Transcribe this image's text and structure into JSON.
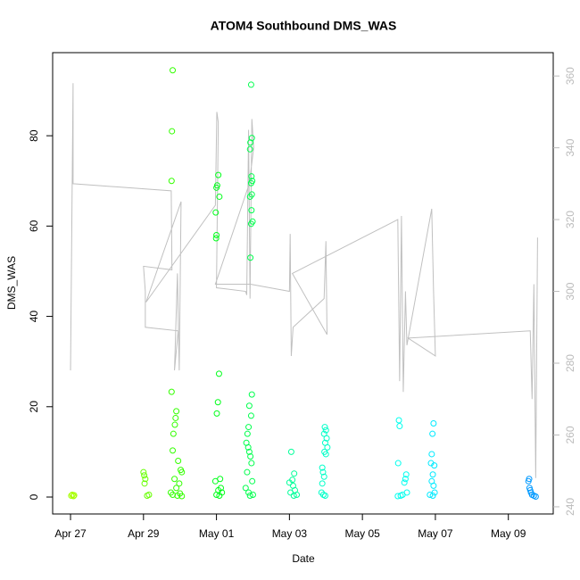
{
  "chart_data": {
    "type": "scatter",
    "title": "ATOM4 Southbound DMS_WAS",
    "x_label": "Date",
    "y_label": "DMS_WAS",
    "xlim": [
      -0.49,
      13.23
    ],
    "ylim": [
      -3.75,
      98.4
    ],
    "y2lim": [
      238.0,
      366.5
    ],
    "xticks": [
      {
        "value": 0,
        "label": "Apr 27"
      },
      {
        "value": 2,
        "label": "Apr 29"
      },
      {
        "value": 4,
        "label": "May 01"
      },
      {
        "value": 6,
        "label": "May 03"
      },
      {
        "value": 8,
        "label": "May 05"
      },
      {
        "value": 10,
        "label": "May 07"
      },
      {
        "value": 12,
        "label": "May 09"
      }
    ],
    "yticks": [
      0,
      20,
      40,
      60,
      80
    ],
    "y2ticks": [
      240,
      260,
      280,
      300,
      320,
      340,
      360
    ],
    "series": [
      {
        "color": "#a6ff00",
        "x": [
          0.02,
          0.05,
          0.08,
          0.1
        ],
        "values": [
          0.3,
          0.5,
          0.2,
          0.4
        ]
      },
      {
        "color": "#66ff00",
        "x": [
          2.0,
          2.02,
          2.05,
          2.03,
          2.1,
          2.15
        ],
        "values": [
          5.5,
          4.8,
          4,
          3,
          0.3,
          0.5
        ]
      },
      {
        "color": "#33ff00",
        "x": [
          2.8,
          2.78,
          2.77,
          2.77,
          2.9,
          2.88,
          2.86,
          2.82,
          2.8,
          2.95,
          3.02,
          3.05,
          2.85,
          2.98,
          2.9,
          2.75,
          3.0,
          2.8,
          2.93,
          3.05
        ],
        "values": [
          94.5,
          81,
          70,
          23.3,
          19,
          17.5,
          16,
          14,
          10.3,
          8,
          6,
          5.5,
          4,
          3,
          2,
          1,
          0.8,
          0.5,
          0.3,
          0.2
        ]
      },
      {
        "color": "#00ff1a",
        "x": [
          4.05,
          4.02,
          4.0,
          4.08,
          3.98,
          4.0,
          3.99,
          4.07,
          4.04,
          4.01,
          4.1,
          3.97,
          4.12,
          4.05,
          4.15,
          4.0,
          4.08
        ],
        "values": [
          71.3,
          69,
          68.5,
          66.5,
          63,
          58,
          57.3,
          27.3,
          21,
          18.5,
          4,
          3.5,
          2,
          1.5,
          1,
          0.5,
          0.3
        ]
      },
      {
        "color": "#00ff4d",
        "x": [
          4.95,
          4.97,
          4.93,
          4.92,
          4.96,
          4.98,
          4.95,
          4.97,
          4.92,
          4.96,
          4.99,
          4.95,
          4.93,
          4.97,
          4.9,
          4.95,
          4.88,
          4.85,
          4.82,
          4.87,
          4.9,
          4.93,
          4.96,
          4.84,
          4.98,
          4.8,
          4.88,
          5.0,
          4.92
        ],
        "values": [
          91.3,
          79.5,
          78.5,
          77,
          71,
          70,
          69.5,
          67,
          66.5,
          63.5,
          61,
          60.5,
          53,
          22.7,
          20.2,
          18,
          15.5,
          14,
          12,
          11,
          10,
          9,
          7.5,
          5.5,
          3.5,
          2,
          1,
          0.5,
          0.3
        ]
      },
      {
        "color": "#00ff99",
        "x": [
          6.05,
          6.13,
          6.08,
          6.0,
          6.1,
          6.15,
          6.03,
          6.2,
          6.12
        ],
        "values": [
          10,
          5.2,
          3.8,
          3.2,
          2.5,
          1.5,
          1,
          0.5,
          0.3
        ]
      },
      {
        "color": "#00ffc8",
        "x": [
          6.97,
          7.0,
          6.95,
          7.02,
          6.98,
          7.04,
          6.96,
          7.0,
          6.9,
          6.92,
          6.95,
          6.9,
          6.88,
          6.93,
          6.98
        ],
        "values": [
          15.5,
          14.8,
          14,
          13,
          12,
          11,
          10,
          9.5,
          6.5,
          5.5,
          4.5,
          3,
          1,
          0.5,
          0.3
        ]
      },
      {
        "color": "#00ffee",
        "x": [
          9.0,
          9.02,
          8.98,
          9.2,
          9.18,
          9.15,
          9.22,
          9.1,
          9.05,
          8.97
        ],
        "values": [
          17,
          15.7,
          7.5,
          5,
          4,
          3.2,
          1,
          0.5,
          0.3,
          0.2
        ]
      },
      {
        "color": "#00eaff",
        "x": [
          9.95,
          9.92,
          9.9,
          9.88,
          9.97,
          9.93,
          9.9,
          9.95,
          9.98,
          9.85,
          9.93
        ],
        "values": [
          16.3,
          14,
          9.5,
          7.5,
          7,
          5,
          3.5,
          2.5,
          1,
          0.5,
          0.3
        ]
      },
      {
        "color": "#0099ff",
        "x": [
          12.57,
          12.55,
          12.58,
          12.6,
          12.62,
          12.65,
          12.7,
          12.75
        ],
        "values": [
          4,
          3.5,
          2,
          1.5,
          1,
          0.5,
          0.3,
          0.1
        ]
      },
      {
        "kind": "line",
        "axis": "y2",
        "color": "#c0c0c0",
        "x": [
          0.0,
          0.07,
          0.07,
          2.76,
          2.78,
          2.0,
          2.05,
          2.05,
          2.95,
          2.85,
          2.93,
          2.98,
          3.03,
          2.07,
          3.97,
          4.01,
          4.05,
          4.0,
          4.8,
          4.83,
          4.88,
          4.92,
          4.97,
          5.02,
          4.9,
          3.97,
          4.93,
          6.0,
          6.02,
          6.05,
          6.1,
          6.95,
          7.0,
          7.03,
          6.08,
          8.97,
          9.02,
          9.07,
          9.12,
          9.18,
          9.22,
          9.9,
          9.95,
          10.0,
          9.25,
          12.6,
          12.65,
          12.7,
          12.75,
          12.8
        ],
        "values": [
          278,
          358,
          330,
          328,
          306,
          307,
          300,
          290,
          289,
          278,
          305,
          278,
          325,
          297,
          324,
          350,
          347,
          301,
          300,
          299,
          345,
          298,
          348,
          340,
          330,
          302,
          302,
          300,
          316,
          282,
          290,
          298,
          314,
          288,
          305,
          320,
          275,
          321,
          272,
          300,
          285,
          323,
          300,
          282,
          287,
          289,
          270,
          302,
          248,
          315
        ]
      }
    ]
  }
}
